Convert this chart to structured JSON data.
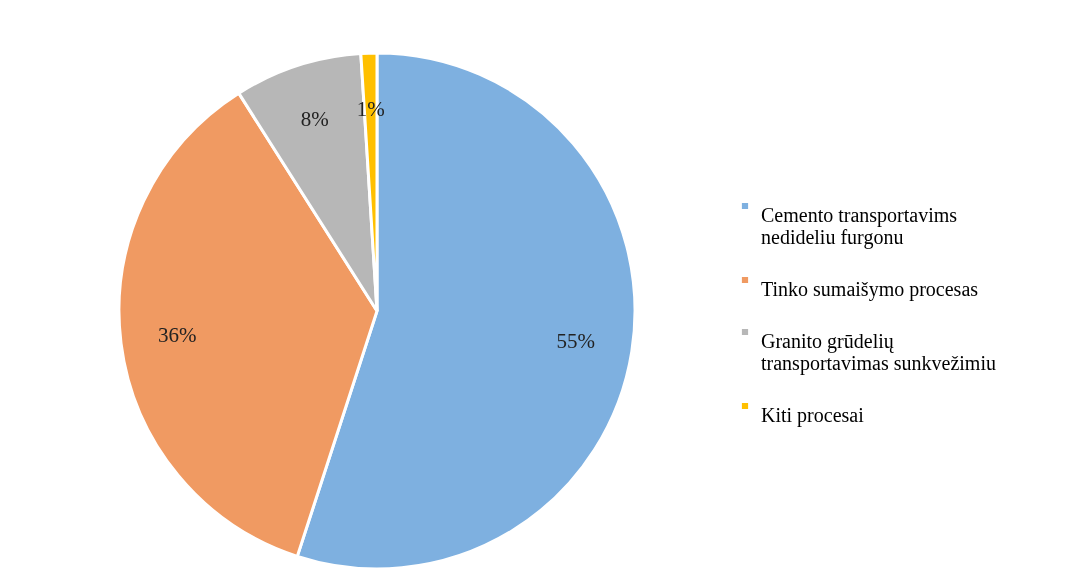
{
  "chart_data": {
    "type": "pie",
    "categories": [
      "Cemento transportavims nedideliu furgonu",
      "Tinko sumaišymo procesas",
      "Granito grūdelių transportavimas sunkvežimiu",
      "Kiti procesai"
    ],
    "values": [
      55,
      36,
      8,
      1
    ],
    "colors": [
      "#7eb0e0",
      "#f09a62",
      "#b7b7b7",
      "#ffc000"
    ],
    "value_labels": [
      "55%",
      "36%",
      "8%",
      "1%"
    ],
    "legend": "right"
  }
}
